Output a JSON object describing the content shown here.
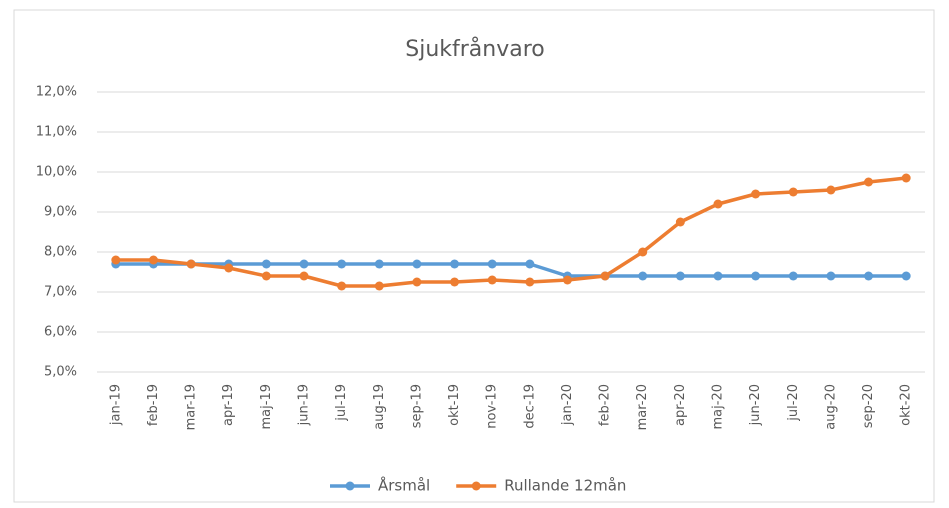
{
  "chart_data": {
    "type": "line",
    "title": "Sjukfrånvaro",
    "categories": [
      "jan-19",
      "feb-19",
      "mar-19",
      "apr-19",
      "maj-19",
      "jun-19",
      "jul-19",
      "aug-19",
      "sep-19",
      "okt-19",
      "nov-19",
      "dec-19",
      "jan-20",
      "feb-20",
      "mar-20",
      "apr-20",
      "maj-20",
      "jun-20",
      "jul-20",
      "aug-20",
      "sep-20",
      "okt-20"
    ],
    "series": [
      {
        "name": "Årsmål",
        "color": "#5b9bd5",
        "values": [
          7.7,
          7.7,
          7.7,
          7.7,
          7.7,
          7.7,
          7.7,
          7.7,
          7.7,
          7.7,
          7.7,
          7.7,
          7.4,
          7.4,
          7.4,
          7.4,
          7.4,
          7.4,
          7.4,
          7.4,
          7.4,
          7.4
        ]
      },
      {
        "name": "Rullande 12mån",
        "color": "#ed7d31",
        "values": [
          7.8,
          7.8,
          7.7,
          7.6,
          7.4,
          7.4,
          7.15,
          7.15,
          7.25,
          7.25,
          7.3,
          7.25,
          7.3,
          7.4,
          8.0,
          8.75,
          9.2,
          9.45,
          9.5,
          9.55,
          9.75,
          9.85
        ]
      }
    ],
    "ylim": [
      5,
      12
    ],
    "yticks": [
      {
        "value": 5,
        "label": "5,0%"
      },
      {
        "value": 6,
        "label": "6,0%"
      },
      {
        "value": 7,
        "label": "7,0%"
      },
      {
        "value": 8,
        "label": "8,0%"
      },
      {
        "value": 9,
        "label": "9,0%"
      },
      {
        "value": 10,
        "label": "10,0%"
      },
      {
        "value": 11,
        "label": "11,0%"
      },
      {
        "value": 12,
        "label": "12,0%"
      }
    ],
    "grid": true,
    "legend": "bottom"
  }
}
